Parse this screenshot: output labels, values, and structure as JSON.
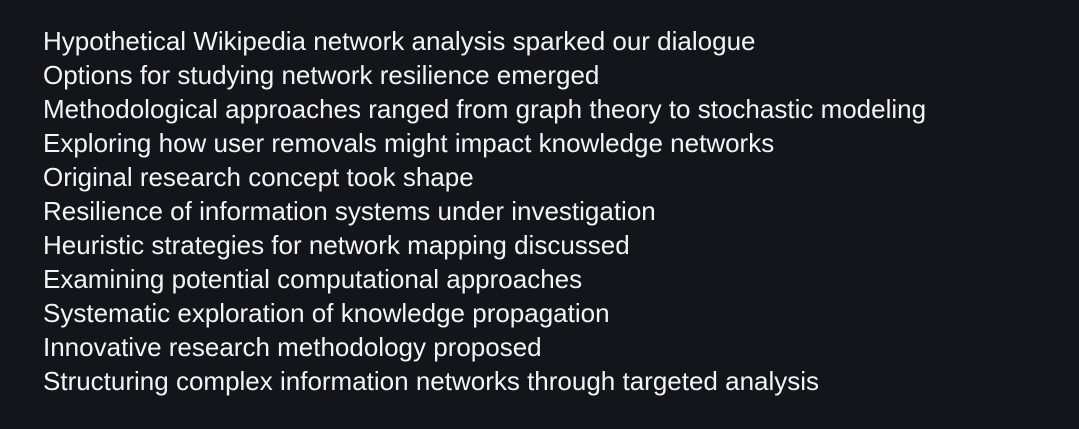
{
  "lines": [
    "Hypothetical Wikipedia network analysis sparked our dialogue",
    "Options for studying network resilience emerged",
    "Methodological approaches ranged from graph theory to stochastic modeling",
    "Exploring how user removals might impact knowledge networks",
    "Original research concept took shape",
    "Resilience of information systems under investigation",
    "Heuristic strategies for network mapping discussed",
    "Examining potential computational approaches",
    "Systematic exploration of knowledge propagation",
    "Innovative research methodology proposed",
    "Structuring complex information networks through targeted analysis"
  ]
}
